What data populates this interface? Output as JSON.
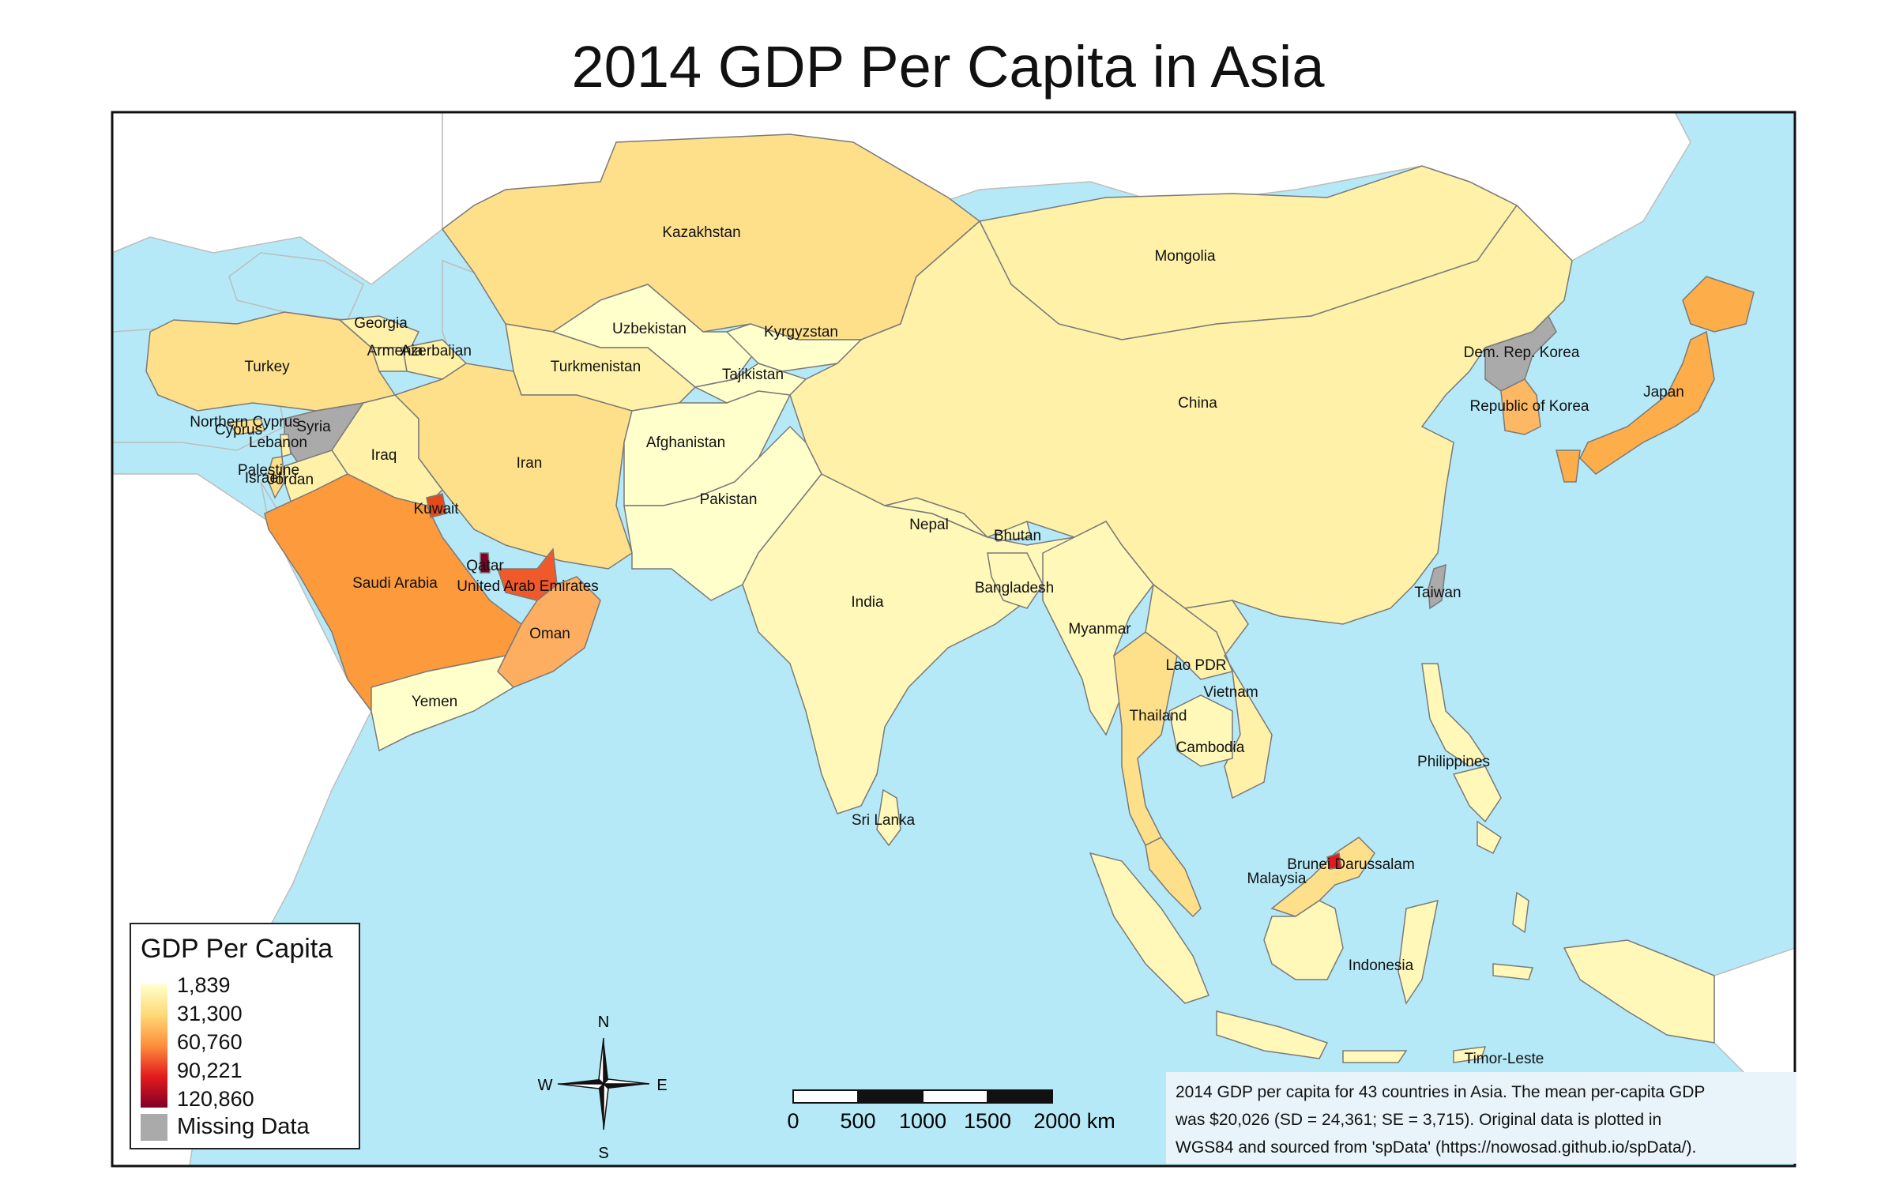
{
  "title": "2014 GDP Per Capita in Asia",
  "colors": {
    "ocean": "#b5e9f7",
    "land_other": "#ffffff",
    "border": "#7a7a7a",
    "missing": "#aaaaaa",
    "frame": "#111111",
    "scale": [
      "#ffffcc",
      "#fed976",
      "#fd8d3c",
      "#e31a1c",
      "#800026"
    ]
  },
  "legend": {
    "title": "GDP Per Capita",
    "values": [
      "1,839",
      "31,300",
      "60,760",
      "90,221",
      "120,860"
    ],
    "missing_label": "Missing Data"
  },
  "countries": [
    {
      "name": "Kazakhstan",
      "gdp": "high-yellow"
    },
    {
      "name": "Mongolia"
    },
    {
      "name": "Georgia"
    },
    {
      "name": "Armenia"
    },
    {
      "name": "Azerbaijan"
    },
    {
      "name": "Uzbekistan"
    },
    {
      "name": "Kyrgyzstan"
    },
    {
      "name": "Turkmenistan"
    },
    {
      "name": "Tajikistan"
    },
    {
      "name": "Turkey"
    },
    {
      "name": "Northern Cyprus"
    },
    {
      "name": "Cyprus"
    },
    {
      "name": "Syria"
    },
    {
      "name": "Lebanon"
    },
    {
      "name": "Iraq"
    },
    {
      "name": "Iran"
    },
    {
      "name": "Afghanistan"
    },
    {
      "name": "Palestine"
    },
    {
      "name": "Israel"
    },
    {
      "name": "Jordan"
    },
    {
      "name": "Kuwait"
    },
    {
      "name": "Pakistan"
    },
    {
      "name": "Nepal"
    },
    {
      "name": "Bhutan"
    },
    {
      "name": "Qatar"
    },
    {
      "name": "Saudi Arabia"
    },
    {
      "name": "United Arab Emirates"
    },
    {
      "name": "India"
    },
    {
      "name": "Bangladesh"
    },
    {
      "name": "Oman"
    },
    {
      "name": "Myanmar"
    },
    {
      "name": "Yemen"
    },
    {
      "name": "Lao PDR"
    },
    {
      "name": "Vietnam"
    },
    {
      "name": "Thailand"
    },
    {
      "name": "Cambodia"
    },
    {
      "name": "Sri Lanka"
    },
    {
      "name": "Philippines"
    },
    {
      "name": "Brunei Darussalam"
    },
    {
      "name": "Malaysia"
    },
    {
      "name": "Indonesia"
    },
    {
      "name": "Timor-Leste"
    },
    {
      "name": "China"
    },
    {
      "name": "Dem. Rep. Korea"
    },
    {
      "name": "Republic of Korea"
    },
    {
      "name": "Japan"
    },
    {
      "name": "Taiwan"
    }
  ],
  "compass": {
    "n": "N",
    "s": "S",
    "e": "E",
    "w": "W"
  },
  "scale_bar": {
    "labels": [
      "0",
      "500",
      "1000",
      "1500",
      "2000 km"
    ]
  },
  "note": "2014 GDP per capita for 43 countries in Asia. The mean per-capita GDP\n was $20,026 (SD = 24,361; SE = 3,715). Original data is plotted in\nWGS84 and sourced from 'spData' (https://nowosad.github.io/spData/)."
}
